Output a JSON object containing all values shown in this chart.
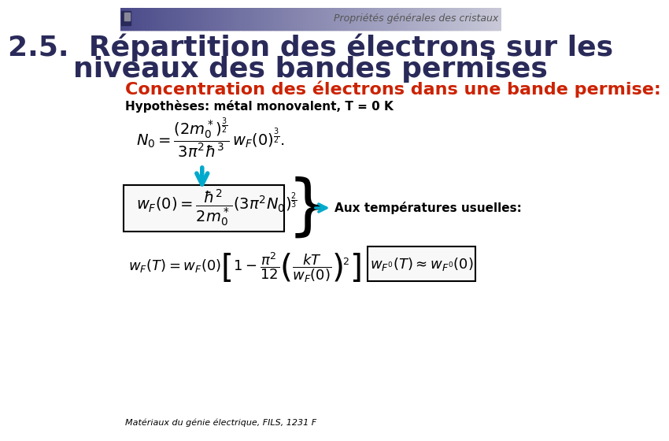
{
  "background_color": "#ffffff",
  "header_gradient_left": "#4a4a8a",
  "header_gradient_right": "#c8c8d8",
  "square_color": "#2a2a5a",
  "header_text": "Propriétés générales des cristaux",
  "header_text_color": "#555555",
  "header_text_size": 9,
  "title_line1": "2.5.  Répartition des électrons sur les",
  "title_line2": "niveaux des bandes permises",
  "title_color": "#2a2a5a",
  "title_size": 26,
  "subtitle": "Concentration des électrons dans une bande permise:",
  "subtitle_color": "#cc2200",
  "subtitle_size": 16,
  "hyp_text": "Hypothèses: métal monovalent, T = 0 K",
  "hyp_size": 11,
  "hyp_color": "#000000",
  "eq1": "N_0 = \\frac{(2m_0^*)^{\\frac{3}{2}}}{3\\pi^2\\hbar^3} w_F(0)^{\\frac{3}{2}}.",
  "eq2": "w_F(0) = \\frac{\\hbar^2}{2m_0^*}(3\\pi^2 N_0)^{\\frac{2}{3}}",
  "eq3": "w_F(T) = w_F(0)\\left[1 - \\frac{\\pi^2}{12}\\left(\\frac{kT}{w_F(0)}\\right)^{\\!2}\\right]",
  "eq4": "w_{F'}(T) \\approx w_{F'}(0)",
  "arrow_color": "#00aacc",
  "side_arrow_color": "#00aacc",
  "aux_text": "Aux températures usuelles:",
  "aux_text_color": "#000000",
  "aux_text_size": 11,
  "footer_text": "Matériaux du génie électrique, FILS, 1231 F",
  "footer_size": 8,
  "footer_color": "#000000",
  "box_color": "#000000",
  "eq_size": 13
}
